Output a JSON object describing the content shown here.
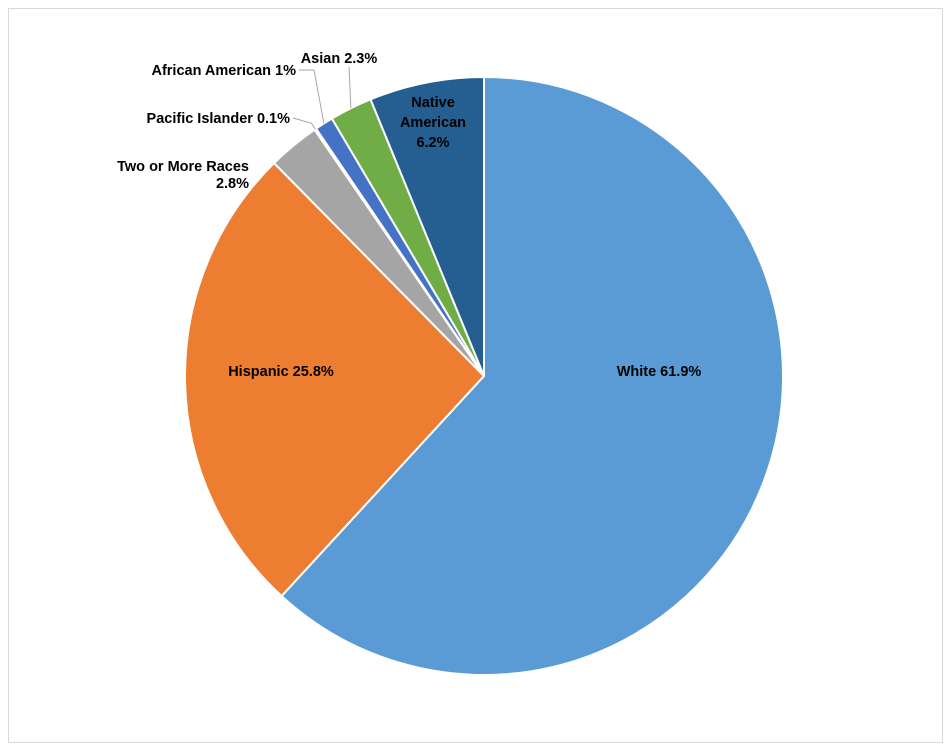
{
  "chart_data": {
    "type": "pie",
    "title": "",
    "slices": [
      {
        "label": "White",
        "value": 61.9,
        "display": "White 61.9%",
        "color": "#5b9bd5"
      },
      {
        "label": "Hispanic",
        "value": 25.8,
        "display": "Hispanic 25.8%",
        "color": "#ed7d31"
      },
      {
        "label": "Two or More Races",
        "value": 2.8,
        "display": "Two or More Races 2.8%",
        "color": "#a5a5a5"
      },
      {
        "label": "Pacific Islander",
        "value": 0.1,
        "display": "Pacific Islander 0.1%",
        "color": "#ffc000"
      },
      {
        "label": "African American",
        "value": 1,
        "display": "African American 1%",
        "color": "#4472c4"
      },
      {
        "label": "Asian",
        "value": 2.3,
        "display": "Asian 2.3%",
        "color": "#70ad47"
      },
      {
        "label": "Native American",
        "value": 6.2,
        "display": "Native American 6.2%",
        "color": "#255e91"
      }
    ],
    "start_angle": "12 o'clock",
    "direction": "clockwise",
    "legend": "none",
    "slice_border": "#ffffff"
  }
}
